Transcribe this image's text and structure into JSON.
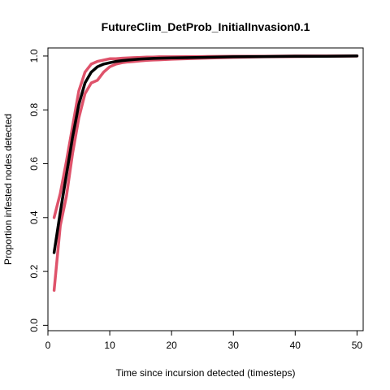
{
  "chart_data": {
    "type": "line",
    "title": "FutureClim_DetProb_InitialInvasion0.1",
    "xlabel": "Time since incursion detected (timesteps)",
    "ylabel": "Proportion infested nodes detected",
    "xlim": [
      0,
      51
    ],
    "ylim": [
      -0.02,
      1.03
    ],
    "xticks": [
      0,
      10,
      20,
      30,
      40,
      50
    ],
    "yticks": [
      0.0,
      0.2,
      0.4,
      0.6,
      0.8,
      1.0
    ],
    "xtick_labels": [
      "0",
      "10",
      "20",
      "30",
      "40",
      "50"
    ],
    "ytick_labels": [
      "0.0",
      "0.2",
      "0.4",
      "0.6",
      "0.8",
      "1.0"
    ],
    "grid": false,
    "x": [
      1,
      2,
      3,
      4,
      5,
      6,
      7,
      8,
      9,
      10,
      11,
      12,
      13,
      14,
      15,
      16,
      17,
      18,
      20,
      25,
      30,
      35,
      40,
      45,
      50
    ],
    "series": [
      {
        "color": "#000000",
        "values": [
          0.27,
          0.42,
          0.56,
          0.7,
          0.82,
          0.9,
          0.94,
          0.96,
          0.97,
          0.975,
          0.98,
          0.983,
          0.985,
          0.987,
          0.989,
          0.99,
          0.991,
          0.992,
          0.993,
          0.995,
          0.997,
          0.998,
          0.999,
          0.999,
          1.0
        ]
      },
      {
        "color": "#DF536B",
        "values": [
          0.4,
          0.49,
          0.61,
          0.74,
          0.87,
          0.94,
          0.97,
          0.98,
          0.985,
          0.99,
          0.99,
          0.992,
          0.993,
          0.994,
          0.995,
          0.996,
          0.996,
          0.997,
          0.997,
          0.998,
          0.999,
          0.999,
          1.0,
          1.0,
          1.0
        ]
      },
      {
        "color": "#DF536B",
        "values": [
          0.13,
          0.37,
          0.48,
          0.64,
          0.77,
          0.86,
          0.9,
          0.91,
          0.94,
          0.96,
          0.97,
          0.975,
          0.978,
          0.98,
          0.982,
          0.984,
          0.985,
          0.986,
          0.988,
          0.992,
          0.995,
          0.997,
          0.998,
          0.999,
          1.0
        ]
      }
    ]
  }
}
